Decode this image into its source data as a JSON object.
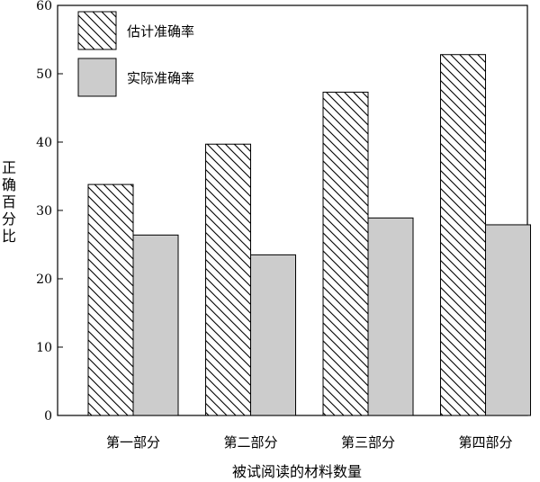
{
  "chart_data": {
    "type": "bar",
    "categories": [
      "第一部分",
      "第二部分",
      "第三部分",
      "第四部分"
    ],
    "series": [
      {
        "name": "估计准确率",
        "values": [
          33.8,
          39.7,
          47.3,
          52.8
        ],
        "pattern": "hatch",
        "color": "#000000"
      },
      {
        "name": "实际准确率",
        "values": [
          26.4,
          23.5,
          28.9,
          27.9
        ],
        "pattern": "solid",
        "color": "#cccccc"
      }
    ],
    "xlabel": "被试阅读的材料数量",
    "ylabel": "正确百分比",
    "ylim": [
      0,
      60
    ],
    "yticks": [
      0,
      10,
      20,
      30,
      40,
      50,
      60
    ],
    "grid": false,
    "legend_position": "top-left"
  }
}
